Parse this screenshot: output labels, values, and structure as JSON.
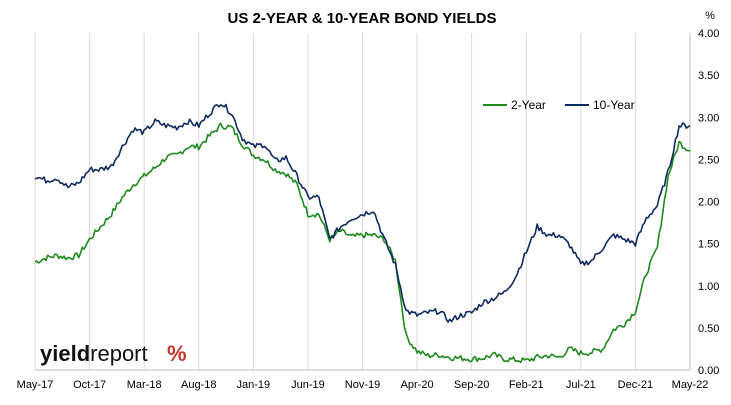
{
  "chart_data": {
    "type": "line",
    "title": "US 2-YEAR & 10-YEAR BOND YIELDS",
    "ylabel": "%",
    "xlabel": "",
    "ylim": [
      0,
      4
    ],
    "yticks": [
      "0.00",
      "0.50",
      "1.00",
      "1.50",
      "2.00",
      "2.50",
      "3.00",
      "3.50",
      "4.00"
    ],
    "xticks": [
      "May-17",
      "Oct-17",
      "Mar-18",
      "Aug-18",
      "Jan-19",
      "Jun-19",
      "Nov-19",
      "Apr-20",
      "Sep-20",
      "Feb-21",
      "Jul-21",
      "Dec-21",
      "May-22"
    ],
    "grid": "vertical",
    "legend_position": "top-right",
    "x": [
      "2017-05",
      "2017-06",
      "2017-07",
      "2017-08",
      "2017-09",
      "2017-10",
      "2017-11",
      "2017-12",
      "2018-01",
      "2018-02",
      "2018-03",
      "2018-04",
      "2018-05",
      "2018-06",
      "2018-07",
      "2018-08",
      "2018-09",
      "2018-10",
      "2018-11",
      "2018-12",
      "2019-01",
      "2019-02",
      "2019-03",
      "2019-04",
      "2019-05",
      "2019-06",
      "2019-07",
      "2019-08",
      "2019-09",
      "2019-10",
      "2019-11",
      "2019-12",
      "2020-01",
      "2020-02",
      "2020-03",
      "2020-04",
      "2020-05",
      "2020-06",
      "2020-07",
      "2020-08",
      "2020-09",
      "2020-10",
      "2020-11",
      "2020-12",
      "2021-01",
      "2021-02",
      "2021-03",
      "2021-04",
      "2021-05",
      "2021-06",
      "2021-07",
      "2021-08",
      "2021-09",
      "2021-10",
      "2021-11",
      "2021-12",
      "2022-01",
      "2022-02",
      "2022-03",
      "2022-04",
      "2022-05"
    ],
    "series": [
      {
        "name": "2-Year",
        "color": "#1e8a1e",
        "values": [
          1.28,
          1.33,
          1.36,
          1.33,
          1.36,
          1.55,
          1.7,
          1.85,
          2.05,
          2.2,
          2.3,
          2.4,
          2.52,
          2.55,
          2.65,
          2.65,
          2.78,
          2.9,
          2.88,
          2.68,
          2.55,
          2.5,
          2.38,
          2.33,
          2.2,
          1.85,
          1.85,
          1.55,
          1.65,
          1.58,
          1.6,
          1.6,
          1.55,
          1.3,
          0.4,
          0.22,
          0.17,
          0.18,
          0.15,
          0.14,
          0.13,
          0.14,
          0.18,
          0.13,
          0.12,
          0.11,
          0.15,
          0.17,
          0.15,
          0.25,
          0.2,
          0.21,
          0.25,
          0.48,
          0.55,
          0.7,
          1.15,
          1.45,
          2.3,
          2.7,
          2.6
        ]
      },
      {
        "name": "10-Year",
        "color": "#0f2a5e",
        "values": [
          2.3,
          2.25,
          2.28,
          2.17,
          2.22,
          2.38,
          2.38,
          2.42,
          2.65,
          2.86,
          2.82,
          2.95,
          2.9,
          2.88,
          2.95,
          2.9,
          3.05,
          3.18,
          3.05,
          2.75,
          2.65,
          2.68,
          2.48,
          2.52,
          2.3,
          2.05,
          2.05,
          1.55,
          1.7,
          1.8,
          1.85,
          1.9,
          1.55,
          1.25,
          0.7,
          0.65,
          0.68,
          0.7,
          0.58,
          0.65,
          0.68,
          0.8,
          0.85,
          0.92,
          1.1,
          1.4,
          1.7,
          1.6,
          1.6,
          1.48,
          1.25,
          1.3,
          1.45,
          1.6,
          1.55,
          1.5,
          1.8,
          1.95,
          2.35,
          2.9,
          2.9
        ]
      }
    ]
  },
  "logo": {
    "text_bold": "yield",
    "text_light": "report",
    "symbol": "%"
  }
}
